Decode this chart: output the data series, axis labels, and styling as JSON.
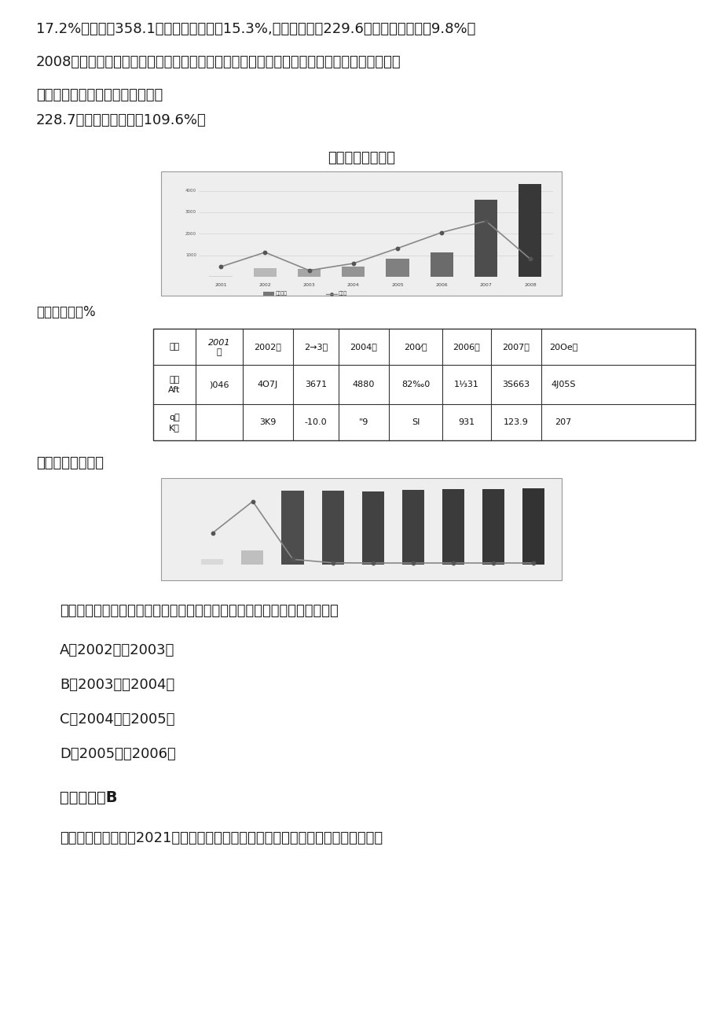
{
  "bg_color": "#ffffff",
  "page_width": 9.2,
  "page_height": 13.01,
  "text_color": "#222222",
  "para1": "17.2%。在校生358.1万人，占总人数的15.3%,其他未成年人229.6万人，占总人数的9.8%。",
  "para2": "2008年农村最低生活保障制度在全国范围内普遍建立，农村低保正在向应保尽保的目标迈进。",
  "para3": "全年共发放农村最低生活保障资金",
  "para4": "228.7亿元，比上年增长109.6%。",
  "chart1_title": "农村最低生活保障",
  "unit_label": "单位：万人、%",
  "table_col0_h": "拉卜",
  "table_col1_h": "2001年",
  "table_col2_h": "2002年",
  "table_col3_h": "2→3年",
  "table_col4_h": "2004年",
  "table_col5_h": "200⁄年",
  "table_col6_h": "2006年",
  "table_col7_h": "2007年",
  "table_col8_h": "20Oe年",
  "table_row1_col0": "保母\nAft",
  "table_row1_vals": [
    ")046",
    "4O7J",
    "3671",
    "4880",
    "82‰0",
    "1⅓31",
    "3S663",
    "4J05S"
  ],
  "table_row2_col0": "q络\nK率",
  "table_row2_vals": [
    "",
    "3K9",
    "-10.0",
    "\"9",
    "SI",
    "931",
    "123.9",
    "207"
  ],
  "chart2_label": "城市最低生活保障",
  "question": "问题：下列时段中，农村居民最低生活保障人数年增长率变化幅度最大的是",
  "option_a": "A、2002年至2003年",
  "option_b": "B、2003年至2004年",
  "option_c": "C、2004年至2005年",
  "option_d": "D、2005年至2006年",
  "answer_label": "【答案】：B",
  "analysis": "【解析】：本题出自2021年安徽《行测》真题，观察表中数据，农村居民最低生保"
}
